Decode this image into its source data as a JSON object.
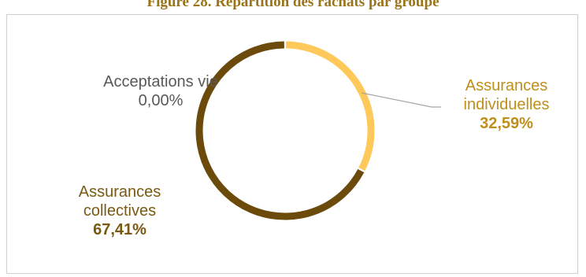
{
  "chart_data": {
    "type": "pie",
    "title": "Figure 28. Répartition des rachats par groupe",
    "slices": [
      {
        "label_lines": [
          "Assurances",
          "individuelles"
        ],
        "value": 32.59,
        "display": "32,59%",
        "color": "#FFC85A"
      },
      {
        "label_lines": [
          "Assurances",
          "collectives"
        ],
        "value": 67.41,
        "display": "67,41%",
        "color": "#6B4A0C"
      },
      {
        "label_lines": [
          "Acceptations vie"
        ],
        "value": 0.0,
        "display": "0,00%",
        "color": "#BFBFBF"
      }
    ],
    "leader_line_color": "#A6A6A6"
  }
}
